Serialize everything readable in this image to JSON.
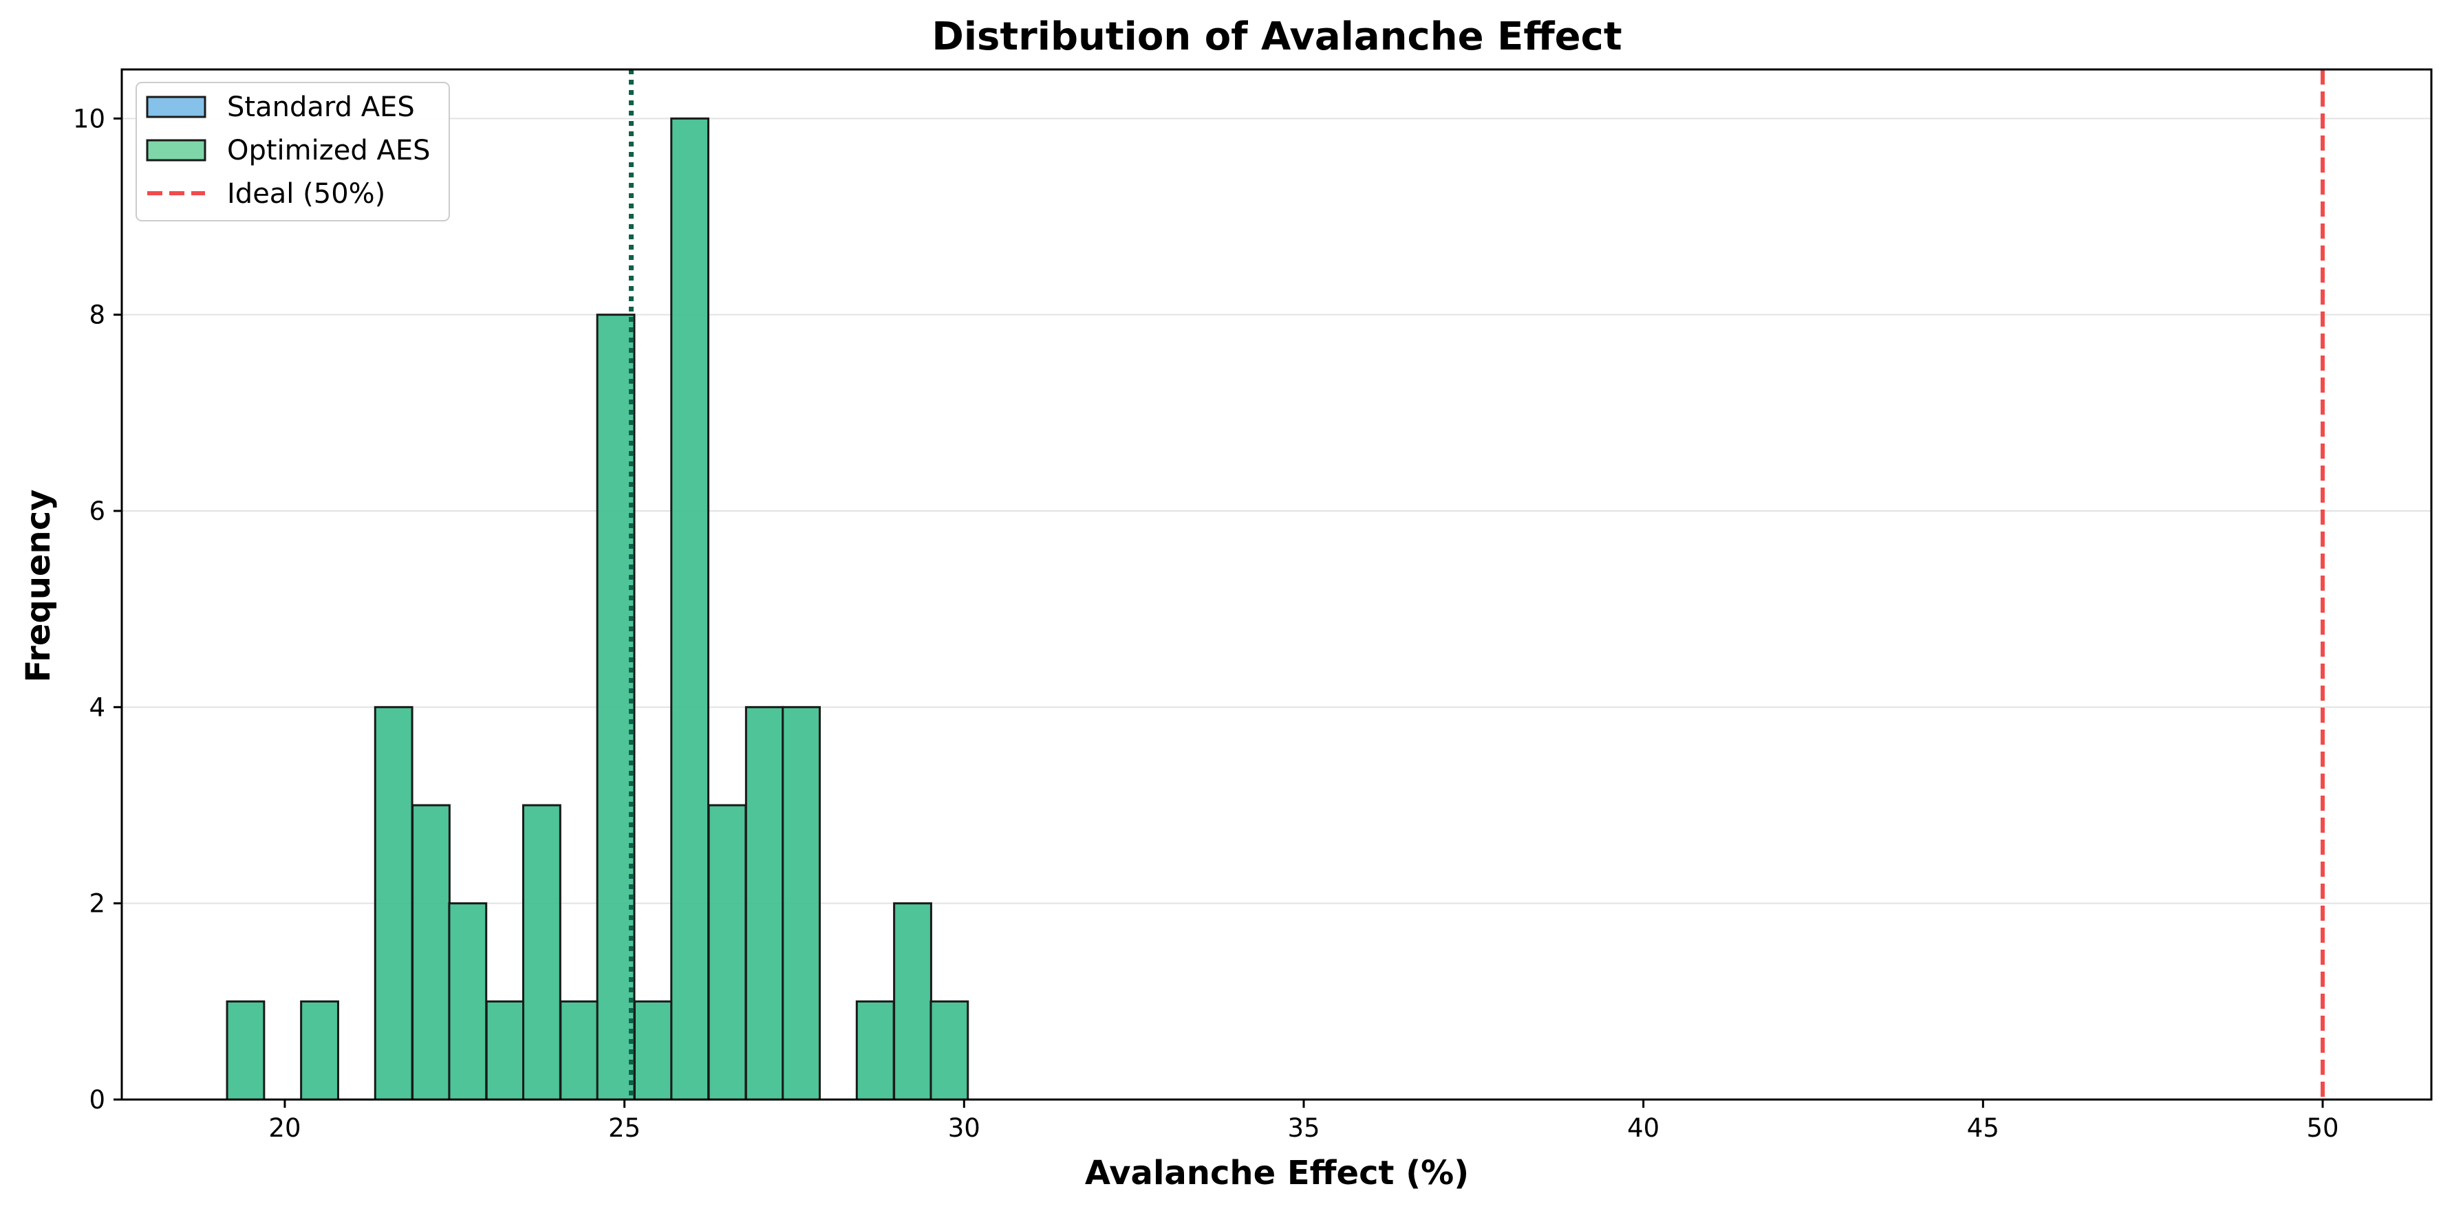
{
  "chart_data": {
    "type": "histogram",
    "title": "Distribution of Avalanche Effect",
    "xlabel": "Avalanche Effect (%)",
    "ylabel": "Frequency",
    "xlim": [
      17.6,
      51.6
    ],
    "ylim": [
      0,
      10.5
    ],
    "xticks": [
      20,
      25,
      30,
      35,
      40,
      45,
      50
    ],
    "yticks": [
      0,
      2,
      4,
      6,
      8,
      10
    ],
    "grid": "horizontal",
    "legend_position": "top-left",
    "bin_width": 0.545,
    "series": [
      {
        "name": "Standard AES",
        "color": "#85c1e9",
        "bins": []
      },
      {
        "name": "Optimized AES",
        "color": "#3fbf8f",
        "bins": [
          {
            "start": 19.15,
            "count": 1
          },
          {
            "start": 20.24,
            "count": 1
          },
          {
            "start": 21.33,
            "count": 4
          },
          {
            "start": 21.88,
            "count": 3
          },
          {
            "start": 22.42,
            "count": 2
          },
          {
            "start": 22.97,
            "count": 1
          },
          {
            "start": 23.51,
            "count": 3
          },
          {
            "start": 24.06,
            "count": 1
          },
          {
            "start": 24.6,
            "count": 8
          },
          {
            "start": 25.15,
            "count": 1
          },
          {
            "start": 25.69,
            "count": 10
          },
          {
            "start": 26.24,
            "count": 3
          },
          {
            "start": 26.79,
            "count": 4
          },
          {
            "start": 27.33,
            "count": 4
          },
          {
            "start": 28.42,
            "count": 1
          },
          {
            "start": 28.97,
            "count": 2
          },
          {
            "start": 29.51,
            "count": 1
          }
        ]
      }
    ],
    "reference_lines": [
      {
        "name": "Ideal (50%)",
        "x": 50,
        "color": "#f24b4b",
        "style": "dashed"
      },
      {
        "name": "",
        "x": 25.1,
        "color": "#0e6048",
        "style": "dotted"
      }
    ],
    "legend": [
      {
        "label": "Standard AES",
        "kind": "patch",
        "color": "#85c1e9"
      },
      {
        "label": "Optimized AES",
        "kind": "patch",
        "color": "#7fd6a8"
      },
      {
        "label": "Ideal (50%)",
        "kind": "line",
        "color": "#f24b4b"
      }
    ]
  }
}
